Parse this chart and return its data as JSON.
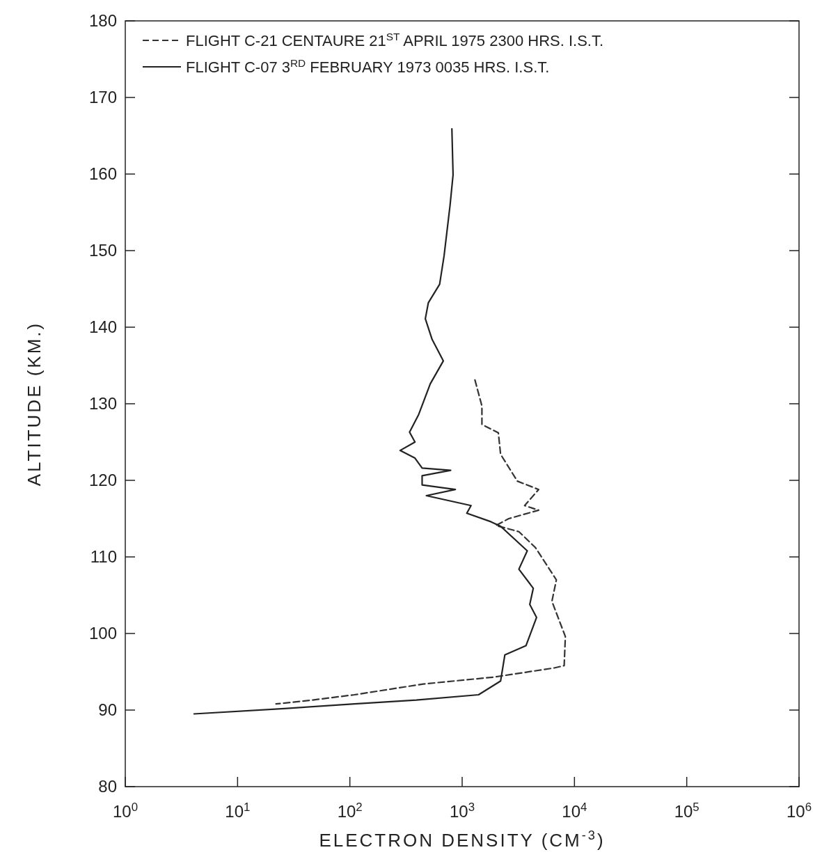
{
  "chart_data": {
    "type": "line",
    "xlabel": "ELECTRON DENSITY (CM$^{-3}$)",
    "ylabel": "ALTITUDE (KM.)",
    "log": "x",
    "grid": false,
    "legend": "top left",
    "marker": "none",
    "xlim": [
      1,
      1000000
    ],
    "ylim": [
      80,
      180
    ],
    "xticks": [
      {
        "value": 1,
        "label": "10$^{0}$"
      },
      {
        "value": 10,
        "label": "10$^{1}$"
      },
      {
        "value": 100,
        "label": "10$^{2}$"
      },
      {
        "value": 1000,
        "label": "10$^{3}$"
      },
      {
        "value": 10000,
        "label": "10$^{4}$"
      },
      {
        "value": 100000,
        "label": "10$^{5}$"
      },
      {
        "value": 1000000,
        "label": "10$^{6}$"
      }
    ],
    "yticks": [
      80,
      90,
      100,
      110,
      120,
      130,
      140,
      150,
      160,
      170,
      180
    ],
    "series": [
      {
        "name": "FLIGHT  C-21 CENTAURE  21$^{ST}$ APRIL  1975  2300  HRS. I.S.T.",
        "color": "#333333",
        "line_style": "dashed",
        "x": [
          1300,
          1500,
          1500,
          2100,
          2200,
          3100,
          4800,
          3600,
          4800,
          2600,
          2000,
          3200,
          4500,
          6900,
          6300,
          8300,
          8100,
          6600,
          1900,
          450,
          110,
          46,
          22
        ],
        "values": [
          133.1,
          129.7,
          127.3,
          126.2,
          123.4,
          119.9,
          118.8,
          116.7,
          116.1,
          115.0,
          114.1,
          113.3,
          111.2,
          107.0,
          104.2,
          99.6,
          95.8,
          95.5,
          94.3,
          93.4,
          92.0,
          91.3,
          90.8
        ]
      },
      {
        "name": "FLIGHT  C-07  3$^{RD}$ FEBRUARY 1973   0035 HRS. I.S.T.",
        "color": "#222222",
        "line_style": "solid",
        "x": [
          810,
          830,
          780,
          690,
          630,
          500,
          470,
          540,
          680,
          520,
          410,
          340,
          380,
          280,
          380,
          440,
          790,
          440,
          440,
          870,
          480,
          1200,
          1100,
          1800,
          2200,
          3800,
          3200,
          4300,
          4000,
          4600,
          3700,
          2400,
          2200,
          1400,
          390,
          110,
          26,
          4.1
        ],
        "values": [
          165.9,
          159.9,
          155.9,
          149.3,
          145.6,
          143.2,
          141.1,
          138.4,
          135.6,
          132.6,
          128.6,
          126.3,
          125.0,
          123.9,
          122.9,
          121.6,
          121.3,
          120.6,
          119.4,
          118.8,
          118.0,
          116.7,
          115.7,
          114.6,
          114.0,
          110.8,
          108.4,
          105.9,
          103.8,
          102.1,
          98.4,
          97.2,
          93.8,
          92.0,
          91.3,
          90.8,
          90.2,
          89.5
        ]
      }
    ]
  }
}
